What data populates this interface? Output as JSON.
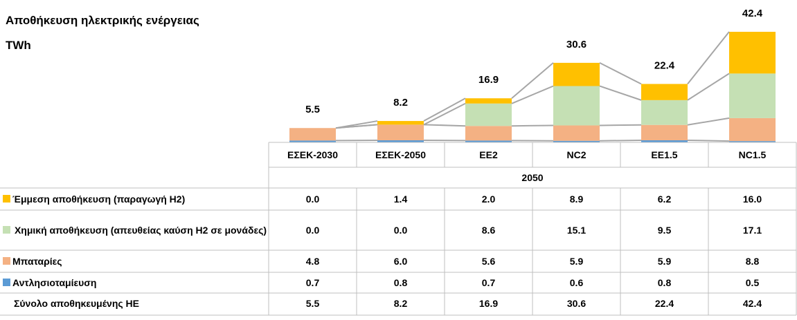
{
  "chart_data": {
    "type": "bar",
    "stacked": true,
    "title": "Αποθήκευση ηλεκτρικής ενέργειας",
    "unit": "TWh",
    "group_label": "2050",
    "categories": [
      "ΕΣΕΚ-2030",
      "ΕΣΕΚ-2050",
      "EE2",
      "NC2",
      "EE1.5",
      "NC1.5"
    ],
    "series": [
      {
        "name": "Αντλησιοταμίευση",
        "color": "#5b9bd5",
        "values": [
          0.7,
          0.8,
          0.7,
          0.6,
          0.8,
          0.5
        ]
      },
      {
        "name": "Μπαταρίες",
        "color": "#f4b183",
        "values": [
          4.8,
          6.0,
          5.6,
          5.9,
          5.9,
          8.8
        ],
        "value_labels": [
          "4.8",
          "6.0",
          "5.6",
          "5.9",
          "5.9",
          "8.8"
        ]
      },
      {
        "name": "Χημική αποθήκευση (απευθείας καύση Η2 σε μονάδες)",
        "color": "#c5e0b4",
        "values": [
          0.0,
          0.0,
          8.6,
          15.1,
          9.5,
          17.1
        ],
        "value_labels": [
          "0.0",
          "0.0",
          "8.6",
          "15.1",
          "9.5",
          "17.1"
        ]
      },
      {
        "name": "Έμμεση αποθήκευση (παραγωγή Η2)",
        "color": "#ffc000",
        "values": [
          0.0,
          1.4,
          2.0,
          8.9,
          6.2,
          16.0
        ],
        "value_labels": [
          "0.0",
          "1.4",
          "2.0",
          "8.9",
          "6.2",
          "16.0"
        ]
      }
    ],
    "totals": {
      "name": "Σύνολο αποθηκευμένης ΗΕ",
      "values": [
        5.5,
        8.2,
        16.9,
        30.6,
        22.4,
        42.4
      ]
    }
  }
}
